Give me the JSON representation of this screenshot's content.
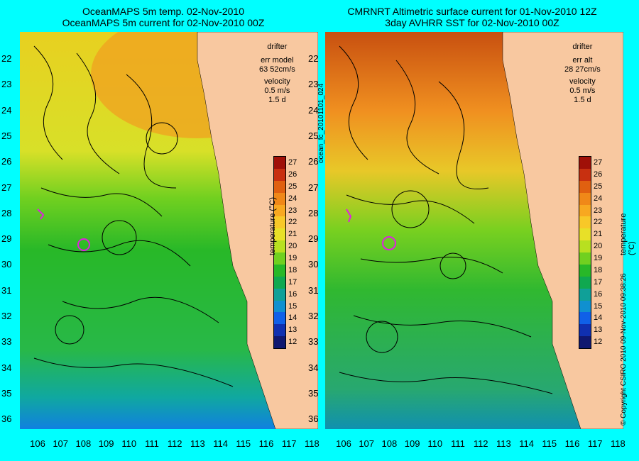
{
  "left": {
    "title1": "OceanMAPS 5m temp. 02-Nov-2010",
    "title2": "OceanMAPS 5m current for 02-Nov-2010 00Z",
    "legend": {
      "drifter": "drifter",
      "err_label": "err model",
      "err_value": "63 52cm/s",
      "velocity": "velocity",
      "vel_scale": "0.5 m/s",
      "vel_days": "1.5 d"
    }
  },
  "right": {
    "title1": "CMRNRT Altimetric surface current for 01-Nov-2010 12Z",
    "title2": "3day AVHRR SST for 02-Nov-2010 00Z",
    "legend": {
      "drifter": "drifter",
      "err_label": "err alt",
      "err_value": "28 27cm/s",
      "velocity": "velocity",
      "vel_scale": "0.5 m/s",
      "vel_days": "1.5 d"
    }
  },
  "side_label": "ocean_fc_20101101_024",
  "copyright": "© Copyright CSIRO 2010   09-Nov-2010 09:38:26",
  "colorbar": {
    "label": "temperature (°C)",
    "ticks": [
      "27",
      "26",
      "25",
      "24",
      "23",
      "22",
      "21",
      "20",
      "19",
      "18",
      "17",
      "16",
      "15",
      "14",
      "13",
      "12"
    ],
    "colors": [
      "#a01008",
      "#c83010",
      "#e06010",
      "#f08818",
      "#f8a820",
      "#f8c828",
      "#e8e028",
      "#b8e020",
      "#70d020",
      "#28b828",
      "#10a850",
      "#10a098",
      "#1090d0",
      "#1060e8",
      "#1030b0",
      "#101870"
    ]
  },
  "axes": {
    "lat": [
      "22",
      "23",
      "24",
      "25",
      "26",
      "27",
      "28",
      "29",
      "30",
      "31",
      "32",
      "33",
      "34",
      "35",
      "36"
    ],
    "lon": [
      "106",
      "107",
      "108",
      "109",
      "110",
      "111",
      "112",
      "113",
      "114",
      "115",
      "116",
      "117",
      "118"
    ]
  },
  "colors": {
    "land": "#f8c8a0",
    "frame": "#00ffff",
    "contour": "#40e0d0",
    "drifter": "#e020e0"
  }
}
